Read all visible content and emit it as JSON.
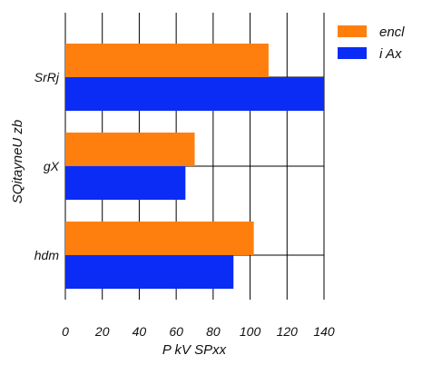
{
  "chart_data": {
    "type": "bar",
    "orientation": "horizontal",
    "categories": [
      "SrRj",
      "gX",
      "hdm"
    ],
    "series": [
      {
        "name": "encl",
        "color": "#ff7f0e",
        "values": [
          110,
          70,
          102
        ]
      },
      {
        "name": "i Ax",
        "color": "#0b2cf5",
        "values": [
          140,
          65,
          91
        ]
      }
    ],
    "xlabel": "P kV SPxx",
    "ylabel": "SQitayneU zb",
    "xlim": [
      0,
      140
    ],
    "xticks": [
      0,
      20,
      40,
      60,
      80,
      100,
      120,
      140
    ],
    "grid": true,
    "legend_position": "top-right"
  }
}
